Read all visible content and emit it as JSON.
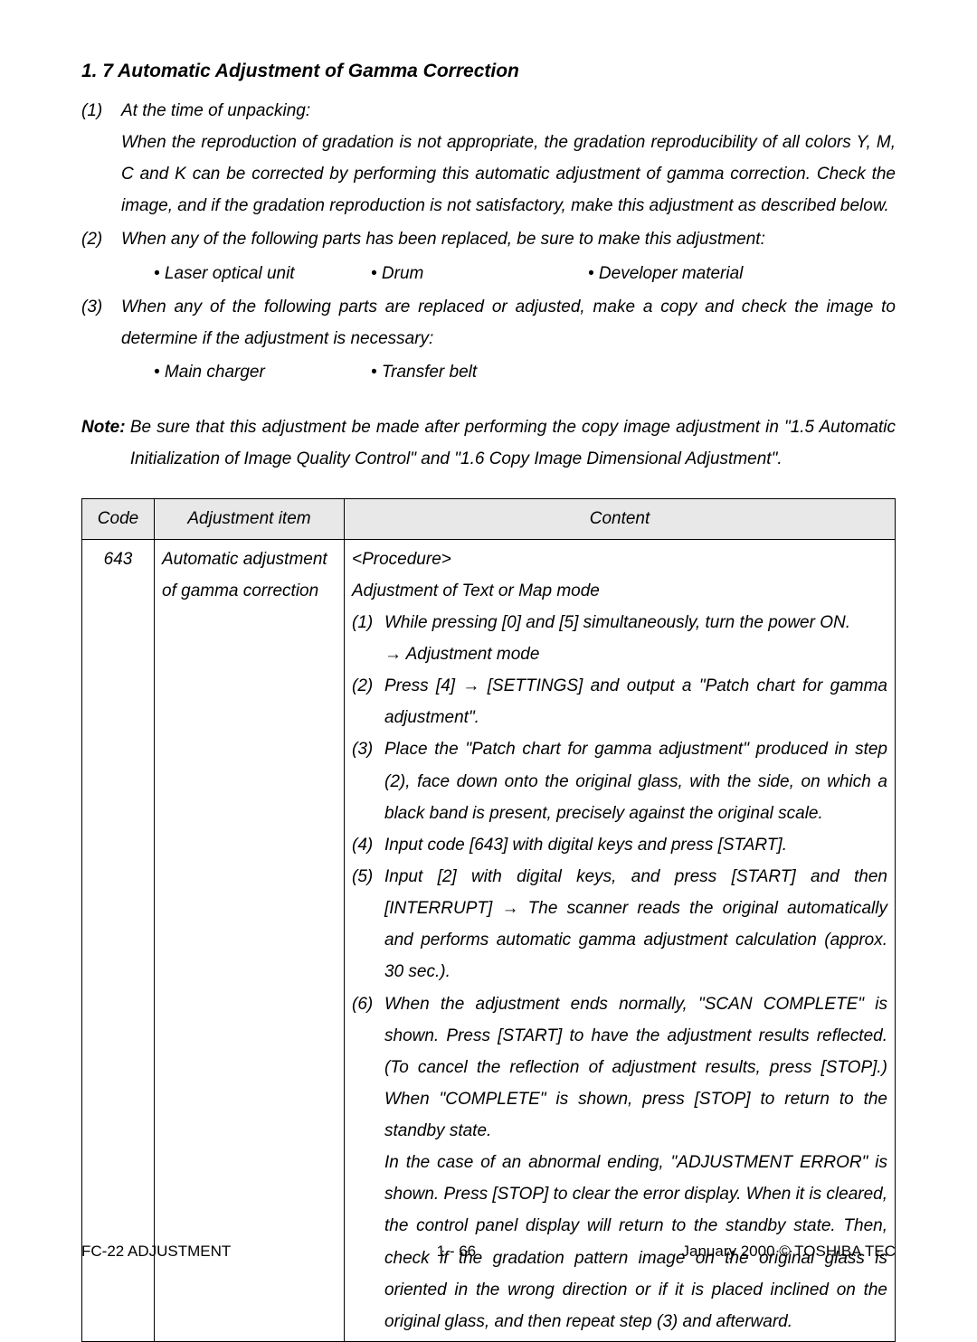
{
  "section": {
    "title": "1. 7  Automatic Adjustment of Gamma Correction",
    "items": [
      {
        "num": "(1)",
        "text": "At the time of unpacking:",
        "para": "When the reproduction of gradation is not appropriate, the gradation reproducibility of all colors Y, M, C and K can be corrected by performing this automatic adjustment of gamma correction. Check the image, and if the gradation reproduction is not satisfactory, make this adjustment as described below."
      },
      {
        "num": "(2)",
        "text": "When any of the following parts has been replaced, be sure to make this adjustment:",
        "bullets": [
          "• Laser optical unit",
          "• Drum",
          "• Developer material"
        ]
      },
      {
        "num": "(3)",
        "text": "When any of the following parts are replaced or adjusted, make a copy and check the image to determine if the adjustment is necessary:",
        "bullets": [
          "• Main charger",
          "• Transfer belt"
        ]
      }
    ],
    "note_label": "Note: ",
    "note_text": "Be sure that this adjustment be made after performing the copy image adjustment in \"1.5 Automatic Initialization of Image Quality Control\" and \"1.6 Copy Image Dimensional Adjustment\"."
  },
  "table": {
    "headers": [
      "Code",
      "Adjustment item",
      "Content"
    ],
    "code": "643",
    "item": "Automatic adjustment of gamma correction",
    "proc_title": "<Procedure>",
    "proc_sub": "Adjustment of Text or Map mode",
    "steps": [
      {
        "n": "(1)",
        "t": "While pressing [0] and [5] simultaneously, turn the power ON.",
        "sub": "→ Adjustment mode"
      },
      {
        "n": "(2)",
        "t": "Press [4] → [SETTINGS] and output a \"Patch chart for gamma adjustment\"."
      },
      {
        "n": "(3)",
        "t": "Place the \"Patch chart for gamma adjustment\" produced in step (2), face down onto the original glass, with the side, on which a black band is present, precisely against the original scale."
      },
      {
        "n": "(4)",
        "t": "Input code [643] with digital keys and press [START]."
      },
      {
        "n": "(5)",
        "t": "Input [2] with digital keys, and press [START] and then [INTERRUPT] → The scanner reads the original automatically and performs automatic gamma adjustment calculation (approx. 30 sec.)."
      },
      {
        "n": "(6)",
        "t": "When the adjustment ends normally, \"SCAN COMPLETE\" is shown. Press [START] to have the adjustment results reflected. (To cancel the reflection of adjustment results, press [STOP].) When \"COMPLETE\" is shown, press [STOP] to return to the standby state."
      }
    ],
    "tail": "In the case of an abnormal ending, \"ADJUSTMENT ERROR\" is shown. Press [STOP] to clear the error display. When it is cleared, the control panel display will return to the standby state. Then, check if the gradation pattern image on the original glass is oriented in the wrong direction or if it is placed inclined on the original glass, and then repeat step (3) and afterward."
  },
  "footer": {
    "left": "FC-22 ADJUSTMENT",
    "mid": "1 - 66",
    "right": "January 2000  ©  TOSHIBA TEC"
  }
}
